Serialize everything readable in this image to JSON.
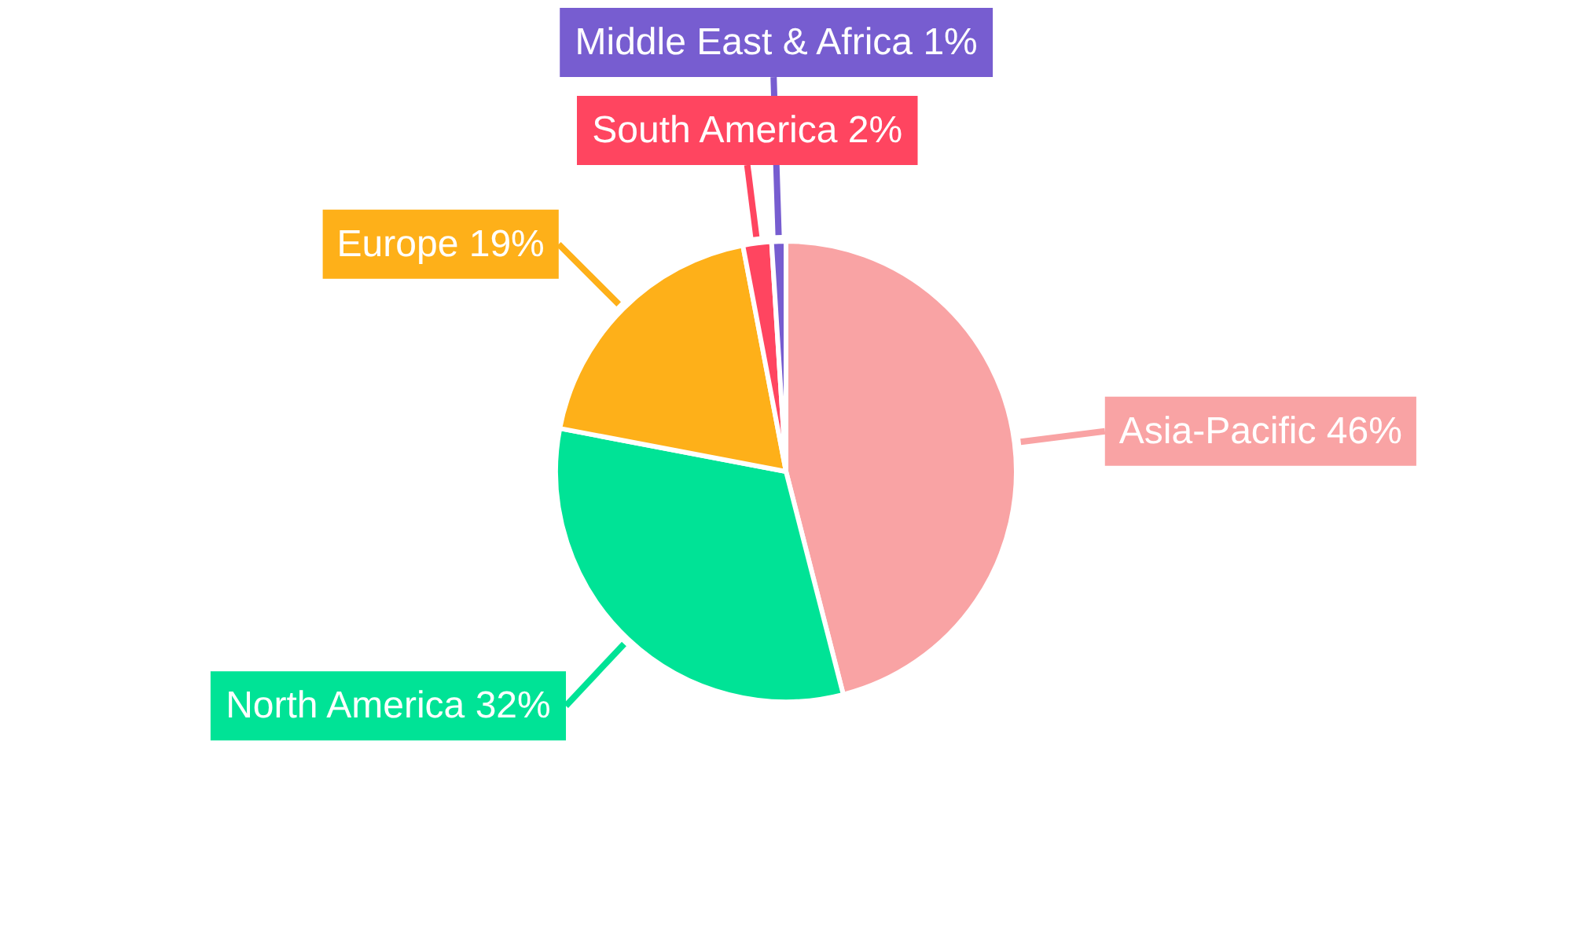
{
  "chart_data": {
    "type": "pie",
    "categories": [
      "Asia-Pacific",
      "North America",
      "Europe",
      "South America",
      "Middle East & Africa"
    ],
    "values": [
      46,
      32,
      19,
      2,
      1
    ],
    "value_labels": [
      "46%",
      "32%",
      "19%",
      "2%",
      "1%"
    ],
    "colors": [
      "#f9a3a4",
      "#00e396",
      "#feb019",
      "#ff4560",
      "#775dd0"
    ]
  }
}
